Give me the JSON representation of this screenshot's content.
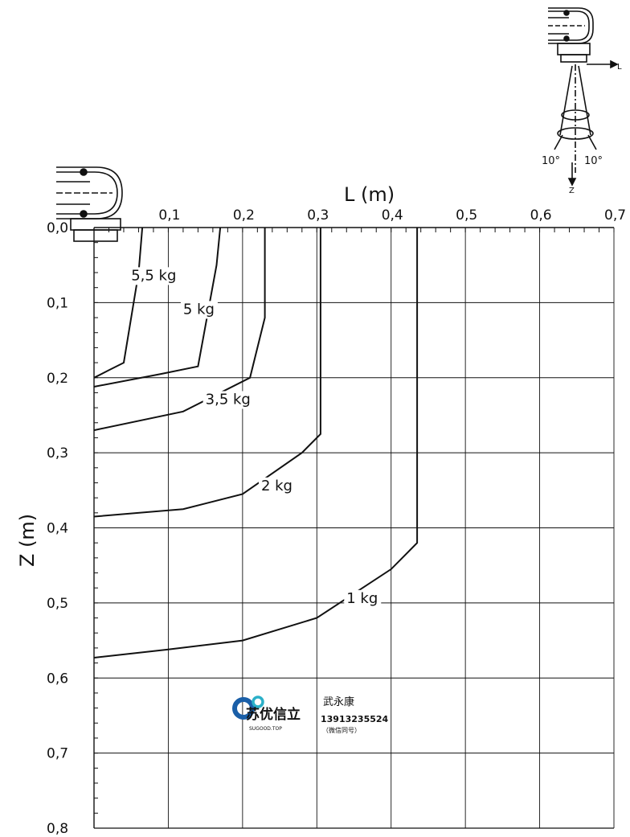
{
  "chart_data": {
    "type": "line",
    "xlabel": "L (m)",
    "ylabel": "Z (m)",
    "xlim": [
      0,
      0.7
    ],
    "ylim": [
      0,
      0.8
    ],
    "y_inverted": true,
    "x_ticks": [
      "0,1",
      "0,2",
      "0,3",
      "0,4",
      "0,5",
      "0,6",
      "0,7"
    ],
    "y_ticks": [
      "0,0",
      "0,1",
      "0,2",
      "0,3",
      "0,4",
      "0,5",
      "0,6",
      "0,7",
      "0,8"
    ],
    "grid": true,
    "series": [
      {
        "name": "5,5 kg",
        "points": [
          [
            0.065,
            0.0
          ],
          [
            0.06,
            0.06
          ],
          [
            0.04,
            0.18
          ],
          [
            0.02,
            0.19
          ],
          [
            0.0,
            0.2
          ]
        ]
      },
      {
        "name": "5 kg",
        "points": [
          [
            0.17,
            0.0
          ],
          [
            0.165,
            0.05
          ],
          [
            0.14,
            0.185
          ],
          [
            0.09,
            0.195
          ],
          [
            0.0,
            0.212
          ]
        ]
      },
      {
        "name": "3,5 kg",
        "points": [
          [
            0.23,
            0.0
          ],
          [
            0.23,
            0.12
          ],
          [
            0.21,
            0.2
          ],
          [
            0.12,
            0.245
          ],
          [
            0.0,
            0.27
          ]
        ]
      },
      {
        "name": "2 kg",
        "points": [
          [
            0.305,
            0.0
          ],
          [
            0.305,
            0.275
          ],
          [
            0.28,
            0.3
          ],
          [
            0.2,
            0.355
          ],
          [
            0.12,
            0.375
          ],
          [
            0.0,
            0.385
          ]
        ]
      },
      {
        "name": "1 kg",
        "points": [
          [
            0.435,
            0.0
          ],
          [
            0.435,
            0.42
          ],
          [
            0.4,
            0.455
          ],
          [
            0.3,
            0.52
          ],
          [
            0.2,
            0.55
          ],
          [
            0.1,
            0.562
          ],
          [
            0.0,
            0.573
          ]
        ]
      }
    ]
  },
  "diagram": {
    "cone_angle_left": "10°",
    "cone_angle_right": "10°",
    "axis_l": "L",
    "axis_z": "Z"
  },
  "watermark": {
    "brand": "苏优信立",
    "brand_sub": "SUGOOD.TOP",
    "name": "武永康",
    "phone": "13913235524",
    "note": "（微信同号）",
    "gear_color": "#1a5fa8",
    "accent_color": "#2bb0c8"
  }
}
